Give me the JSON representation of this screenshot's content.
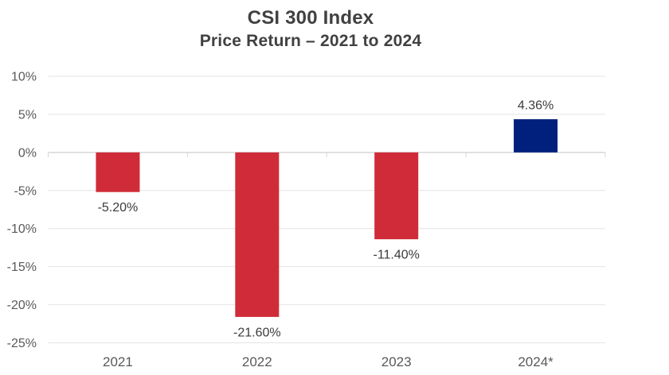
{
  "header": {
    "title": "CSI 300 Index",
    "subtitle": "Price Return – 2021 to 2024"
  },
  "colors": {
    "background": "#FFFFFF",
    "title_text": "#414042",
    "axis_text": "#58595B",
    "label_text": "#3B3B3D",
    "gridline": "#E4E4E4",
    "zero_line": "#D6D6D6",
    "negative_bar": "#D02B38",
    "positive_bar": "#01207D"
  },
  "chart_data": {
    "type": "bar",
    "title": "CSI 300 Index",
    "subtitle": "Price Return – 2021 to 2024",
    "categories": [
      "2021",
      "2022",
      "2023",
      "2024*"
    ],
    "values": [
      -5.2,
      -21.6,
      -11.4,
      4.36
    ],
    "value_labels": [
      "-5.20%",
      "-21.60%",
      "-11.40%",
      "4.36%"
    ],
    "bar_colors": [
      "#D02B38",
      "#D02B38",
      "#D02B38",
      "#01207D"
    ],
    "xlabel": "",
    "ylabel": "",
    "ylim": [
      -25,
      10
    ],
    "ytick_step": 5,
    "ytick_labels": [
      "10%",
      "5%",
      "0%",
      "-5%",
      "-10%",
      "-15%",
      "-20%",
      "-25%"
    ],
    "grid": true,
    "legend": false
  }
}
